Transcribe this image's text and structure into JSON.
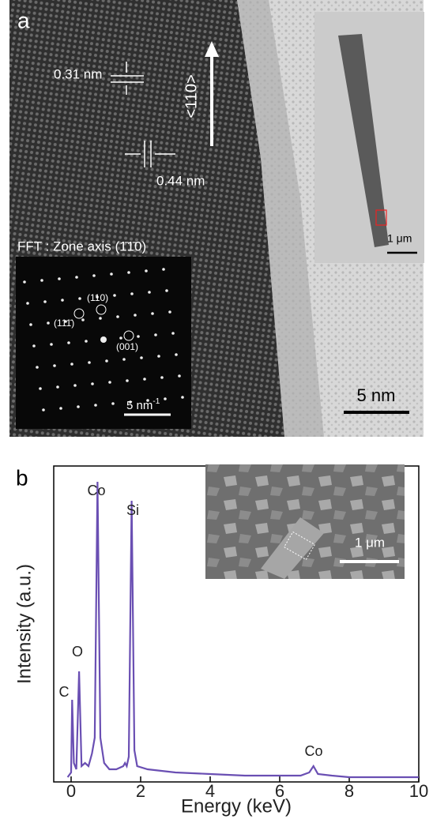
{
  "panel_a": {
    "label": "a",
    "lattice_spacing_1": "0.31 nm",
    "direction": "<110>",
    "lattice_spacing_2": "0.44 nm",
    "fft_title": "FFT : Zone axis (1̄1̄0)",
    "fft_spots": [
      "(111̄)",
      "(110)",
      "(001)"
    ],
    "fft_scale": "5 nm",
    "fft_scale_exponent": "-1",
    "inset_scale": "1 μm",
    "scale": "5 nm"
  },
  "chart_data": {
    "type": "line",
    "panel_label": "b",
    "xlabel": "Energy (keV)",
    "ylabel": "Intensity (a.u.)",
    "x": [
      -0.1,
      0,
      0.03,
      0.08,
      0.15,
      0.23,
      0.3,
      0.4,
      0.5,
      0.6,
      0.68,
      0.76,
      0.84,
      0.95,
      1.1,
      1.3,
      1.5,
      1.55,
      1.6,
      1.66,
      1.74,
      1.82,
      1.9,
      2.2,
      3,
      4,
      5,
      6,
      6.6,
      6.85,
      6.97,
      7.1,
      7.5,
      8,
      9,
      10
    ],
    "values": [
      1.5,
      3,
      26,
      6,
      4,
      35,
      5,
      6,
      5,
      9,
      14,
      95,
      14,
      6,
      4,
      4,
      5,
      6,
      5,
      8,
      89,
      10,
      5,
      4,
      3,
      2.5,
      2,
      2,
      2,
      3,
      5,
      2.5,
      2,
      1.5,
      1.5,
      1.5
    ],
    "color": "#6a4fb3",
    "xlim": [
      -0.5,
      10
    ],
    "ylim": [
      0,
      100
    ],
    "xticks": [
      0,
      2,
      4,
      6,
      8,
      10
    ],
    "annotations": [
      "C",
      "O",
      "Co",
      "Si",
      "Co"
    ],
    "inset_scale": "1 μm"
  }
}
